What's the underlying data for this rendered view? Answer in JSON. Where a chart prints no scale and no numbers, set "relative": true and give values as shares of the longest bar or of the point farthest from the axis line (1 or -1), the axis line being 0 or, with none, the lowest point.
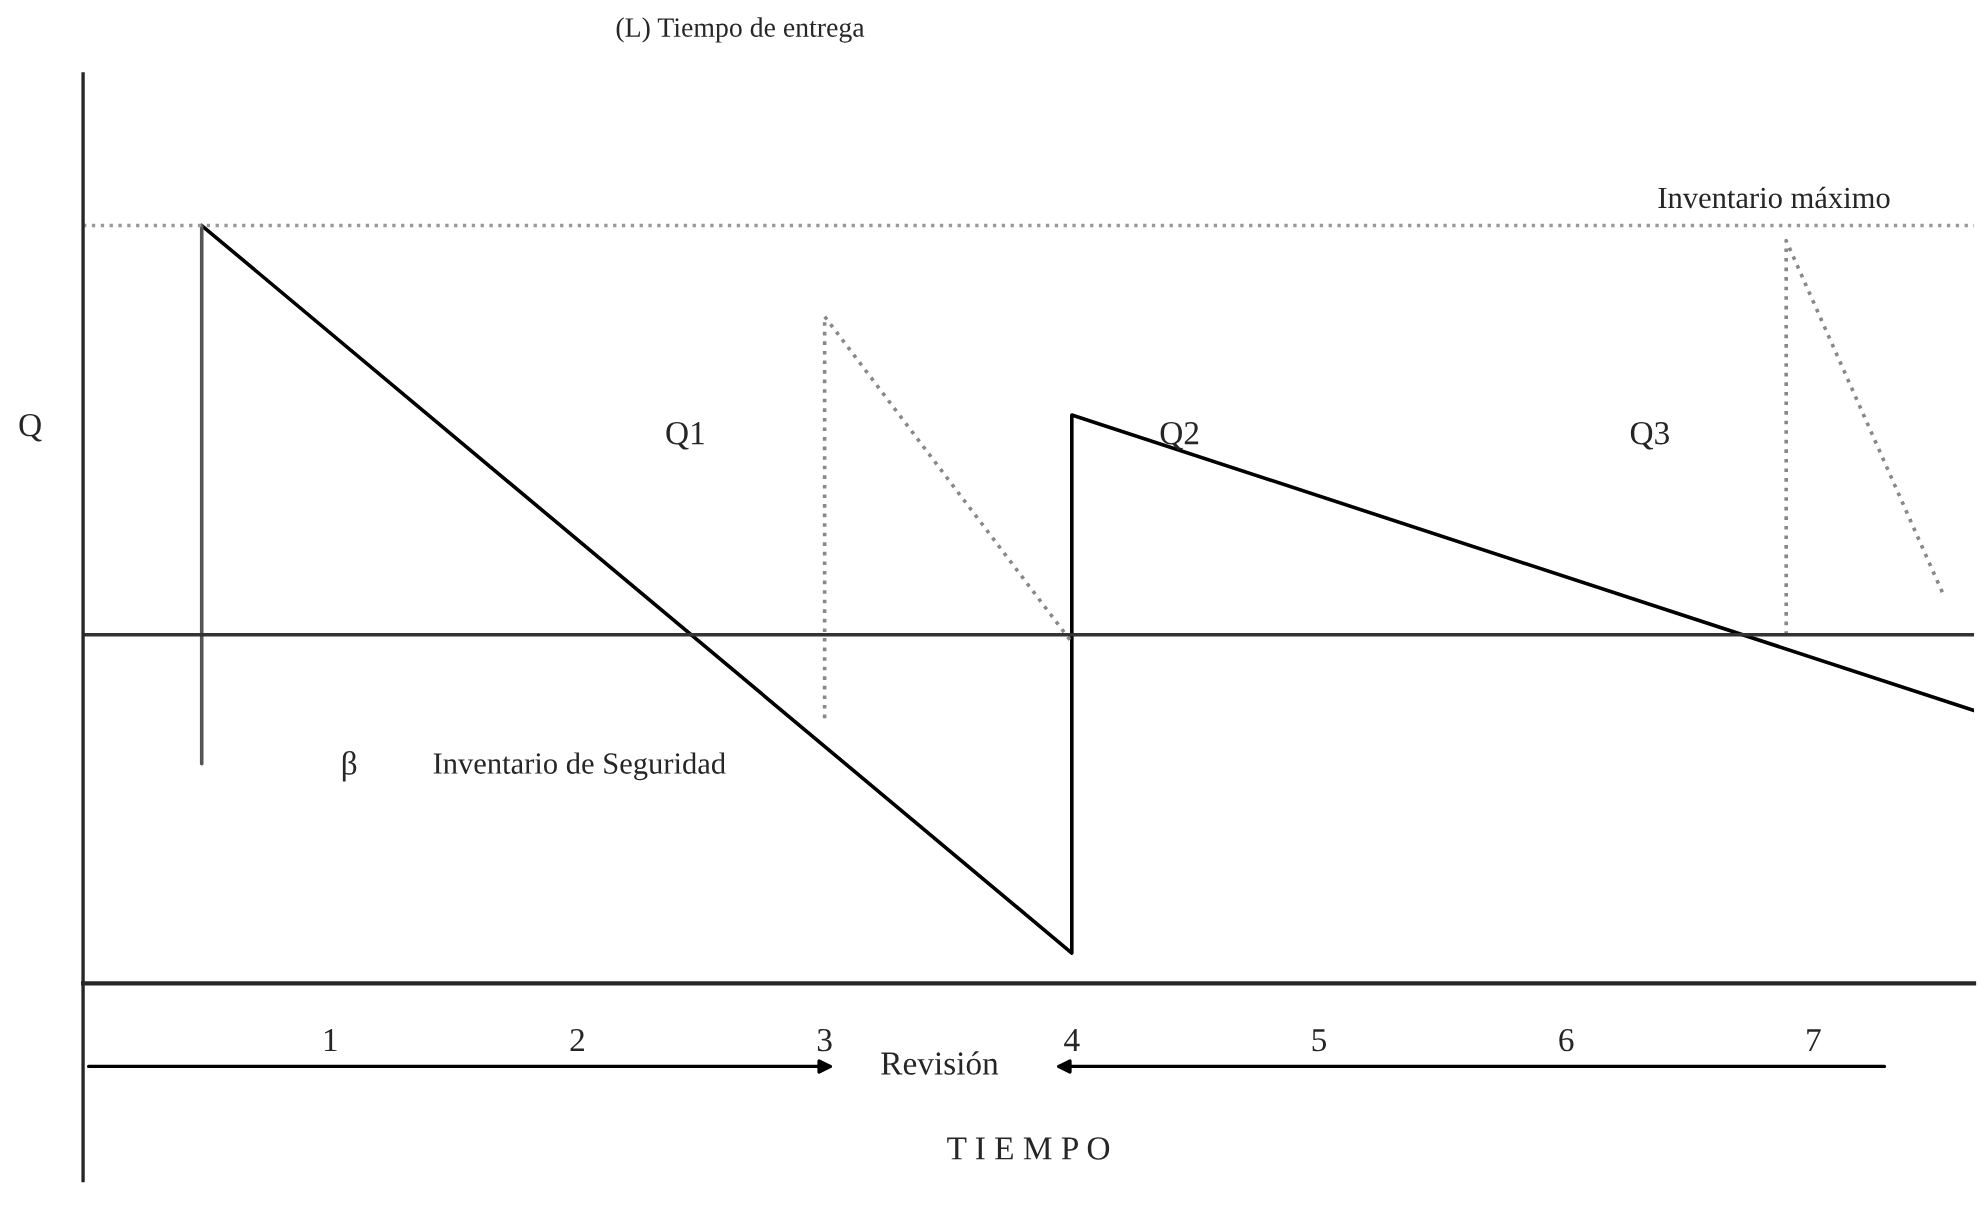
{
  "chart_data": {
    "type": "line",
    "relative": true,
    "xlabel": "T I E M P O",
    "ylabel": "Q",
    "xlim": [
      0,
      7.65
    ],
    "xticks": [
      1,
      2,
      3,
      4,
      5,
      6,
      7
    ],
    "grid": false,
    "marker": "none",
    "series": [
      {
        "color": "#000000",
        "line_style": "solid",
        "x": [
          0.48,
          4,
          4,
          7.65
        ],
        "values": [
          1,
          0.04,
          0.75,
          0.36
        ]
      },
      {
        "color": "#555555",
        "line_style": "solid",
        "x": [
          0.48,
          0.48
        ],
        "values": [
          1,
          0.29
        ]
      },
      {
        "color": "#888888",
        "line_style": "dotted",
        "x": [
          3,
          3,
          4
        ],
        "values": [
          0.35,
          0.88,
          0.45
        ]
      },
      {
        "color": "#888888",
        "line_style": "dotted",
        "x": [
          6.89,
          6.89,
          7.53
        ],
        "values": [
          0.46,
          0.98,
          0.51
        ]
      }
    ],
    "ref_lines": [
      {
        "axis": "y",
        "value": 0.46,
        "color": "#333333",
        "line_style": "solid"
      },
      {
        "axis": "y",
        "value": 1,
        "color": "#999999",
        "line_style": "dotted",
        "label": "Inventario máximo"
      }
    ],
    "annotations": [
      "(L) Tiempo de entrega",
      "Q1",
      "Q2",
      "Q3",
      "β",
      "Inventario de Seguridad",
      "Revisión"
    ]
  }
}
